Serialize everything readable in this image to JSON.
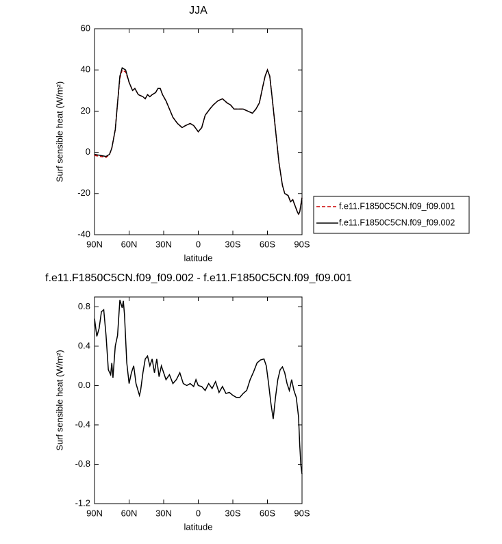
{
  "chart_data": [
    {
      "type": "line",
      "title": "JJA",
      "xlabel": "latitude",
      "ylabel": "Surf sensible heat (W/m²)",
      "x": [
        90,
        85,
        80,
        77,
        75,
        72,
        70,
        68,
        66,
        63,
        60,
        57,
        55,
        52,
        48,
        46,
        44,
        42,
        40,
        37,
        35,
        33,
        31,
        28,
        25,
        22,
        18,
        14,
        11,
        7,
        4,
        0,
        -3,
        -6,
        -10,
        -13,
        -17,
        -21,
        -25,
        -28,
        -31,
        -35,
        -39,
        -43,
        -47,
        -50,
        -53,
        -56,
        -58,
        -60,
        -62,
        -64,
        -67,
        -70,
        -73,
        -75,
        -78,
        -80,
        -82,
        -84,
        -86,
        -87,
        -88,
        -90
      ],
      "series": [
        {
          "name": "f.e11.F1850C5CN.f09_f09.001",
          "color": "#cc0000",
          "line_style": "dashed",
          "values": [
            -1.5,
            -2,
            -2.5,
            -1,
            2,
            11,
            24,
            36,
            40,
            39,
            34,
            30,
            31,
            28,
            27,
            26,
            28,
            27,
            28,
            29,
            31,
            31,
            28,
            25,
            21,
            17,
            14,
            12,
            13,
            14,
            13,
            10,
            12,
            18,
            21,
            23,
            25,
            26,
            24,
            23,
            21,
            21,
            21,
            20,
            19,
            21,
            24,
            32,
            37,
            40,
            37,
            27,
            11,
            -5,
            -16,
            -20,
            -21,
            -24,
            -23,
            -26,
            -29,
            -30,
            -29,
            -22
          ]
        },
        {
          "name": "f.e11.F1850C5CN.f09_f09.002",
          "color": "#000000",
          "line_style": "solid",
          "values": [
            -1,
            -1.5,
            -2,
            -1,
            2,
            11,
            24,
            37,
            41,
            40,
            34,
            30,
            31,
            28,
            27,
            26,
            28,
            27,
            28,
            29,
            31,
            31,
            28,
            25,
            21,
            17,
            14,
            12,
            13,
            14,
            13,
            10,
            12,
            18,
            21,
            23,
            25,
            26,
            24,
            23,
            21,
            21,
            21,
            20,
            19,
            21,
            24,
            32,
            37,
            40,
            37,
            27,
            11,
            -5,
            -16,
            -20,
            -21,
            -24,
            -23,
            -26,
            -29,
            -30,
            -29,
            -22
          ]
        }
      ],
      "xlim": [
        90,
        -90
      ],
      "xticks": [
        {
          "value": 90,
          "label": "90N"
        },
        {
          "value": 60,
          "label": "60N"
        },
        {
          "value": 30,
          "label": "30N"
        },
        0,
        {
          "value": -30,
          "label": "30S"
        },
        {
          "value": -60,
          "label": "60S"
        },
        {
          "value": -90,
          "label": "90S"
        }
      ],
      "ylim": [
        -40,
        60
      ],
      "yticks": [
        -40,
        -20,
        0,
        20,
        40,
        60
      ],
      "legend": "outside-right"
    },
    {
      "type": "line",
      "title": "f.e11.F1850C5CN.f09_f09.002 - f.e11.F1850C5CN.f09_f09.001",
      "xlabel": "latitude",
      "ylabel": "Surf sensible heat (W/m²)",
      "x": [
        90,
        88,
        86,
        84,
        82,
        80,
        78,
        76,
        75,
        74,
        72,
        70,
        68,
        66,
        65,
        64,
        62,
        60,
        58,
        56,
        54,
        51,
        50,
        48,
        46,
        44,
        42,
        40,
        38,
        36,
        34,
        32,
        30,
        28,
        25,
        22,
        19,
        16,
        13,
        10,
        7,
        4,
        2,
        0,
        -3,
        -6,
        -9,
        -12,
        -15,
        -18,
        -21,
        -24,
        -27,
        -30,
        -33,
        -36,
        -39,
        -42,
        -45,
        -48,
        -51,
        -54,
        -57,
        -59,
        -61,
        -63,
        -65,
        -67,
        -69,
        -71,
        -73,
        -75,
        -77,
        -79,
        -81,
        -83,
        -85,
        -87,
        -88,
        -89,
        -90
      ],
      "series": [
        {
          "name": null,
          "color": "#000000",
          "line_style": "solid",
          "values": [
            0.68,
            0.5,
            0.58,
            0.75,
            0.77,
            0.51,
            0.16,
            0.11,
            0.23,
            0.08,
            0.4,
            0.51,
            0.87,
            0.79,
            0.86,
            0.72,
            0.23,
            0.02,
            0.13,
            0.2,
            0.02,
            -0.1,
            -0.05,
            0.13,
            0.27,
            0.3,
            0.2,
            0.27,
            0.13,
            0.27,
            0.09,
            0.2,
            0.13,
            0.06,
            0.11,
            0.02,
            0.06,
            0.13,
            0.02,
            0,
            0.02,
            -0.01,
            0.06,
            0,
            -0.01,
            -0.05,
            0.02,
            -0.03,
            0.04,
            -0.07,
            -0.01,
            -0.08,
            -0.07,
            -0.1,
            -0.12,
            -0.12,
            -0.08,
            -0.05,
            0.06,
            0.14,
            0.23,
            0.26,
            0.27,
            0.2,
            0.02,
            -0.18,
            -0.34,
            -0.12,
            0.06,
            0.16,
            0.19,
            0.13,
            0.02,
            -0.05,
            0.06,
            -0.05,
            -0.12,
            -0.32,
            -0.6,
            -0.81,
            -0.9
          ]
        }
      ],
      "xlim": [
        90,
        -90
      ],
      "xticks": [
        {
          "value": 90,
          "label": "90N"
        },
        {
          "value": 60,
          "label": "60N"
        },
        {
          "value": 30,
          "label": "30N"
        },
        0,
        {
          "value": -30,
          "label": "30S"
        },
        {
          "value": -60,
          "label": "60S"
        },
        {
          "value": -90,
          "label": "90S"
        }
      ],
      "ylim": [
        -1.2,
        0.9
      ],
      "yticks": [
        -1.2,
        -0.8,
        -0.4,
        {
          "value": 0,
          "label": "0.0"
        },
        0.4,
        0.8
      ]
    }
  ]
}
